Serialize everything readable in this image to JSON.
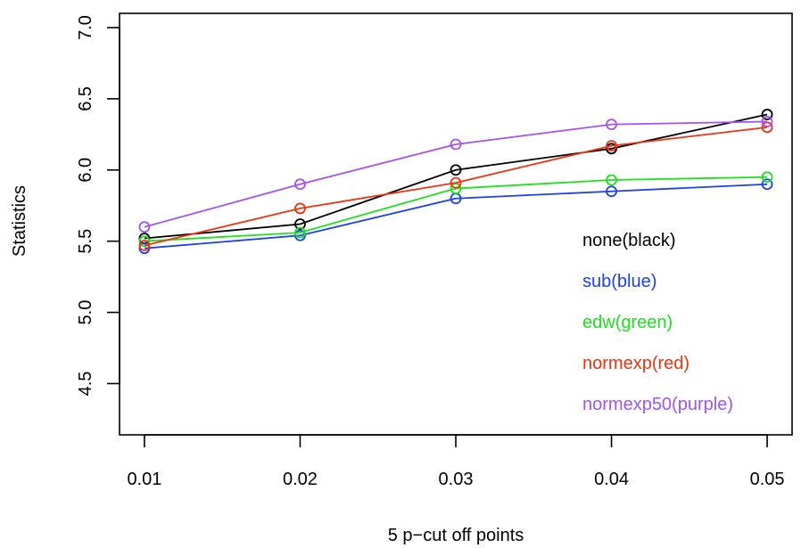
{
  "chart_data": {
    "type": "line",
    "xlabel": "5 p−cut off points",
    "ylabel": "Statistics",
    "x": [
      0.01,
      0.02,
      0.03,
      0.04,
      0.05
    ],
    "x_tick_labels": [
      "0.01",
      "0.02",
      "0.03",
      "0.04",
      "0.05"
    ],
    "y_ticks": [
      4.5,
      5.0,
      5.5,
      6.0,
      6.5,
      7.0
    ],
    "y_tick_labels": [
      "4.5",
      "5.0",
      "5.5",
      "6.0",
      "6.5",
      "7.0"
    ],
    "xlim": [
      0.0084,
      0.0516
    ],
    "ylim": [
      4.14,
      7.1
    ],
    "grid": false,
    "legend_position": "bottom-right inside plot",
    "series": [
      {
        "name": "none(black)",
        "color": "#000000",
        "values": [
          5.52,
          5.62,
          6.0,
          6.15,
          6.39
        ]
      },
      {
        "name": "sub(blue)",
        "color": "#1c3ff0",
        "values": [
          5.45,
          5.54,
          5.8,
          5.85,
          5.9
        ]
      },
      {
        "name": "edw(green)",
        "color": "#1ee01e",
        "values": [
          5.5,
          5.56,
          5.87,
          5.93,
          5.95
        ]
      },
      {
        "name": "normexp(red)",
        "color": "#f0320f",
        "values": [
          5.47,
          5.73,
          5.91,
          6.17,
          6.3
        ]
      },
      {
        "name": "normexp50(purple)",
        "color": "#a452f0",
        "values": [
          5.6,
          5.9,
          6.18,
          6.32,
          6.34
        ]
      }
    ]
  }
}
